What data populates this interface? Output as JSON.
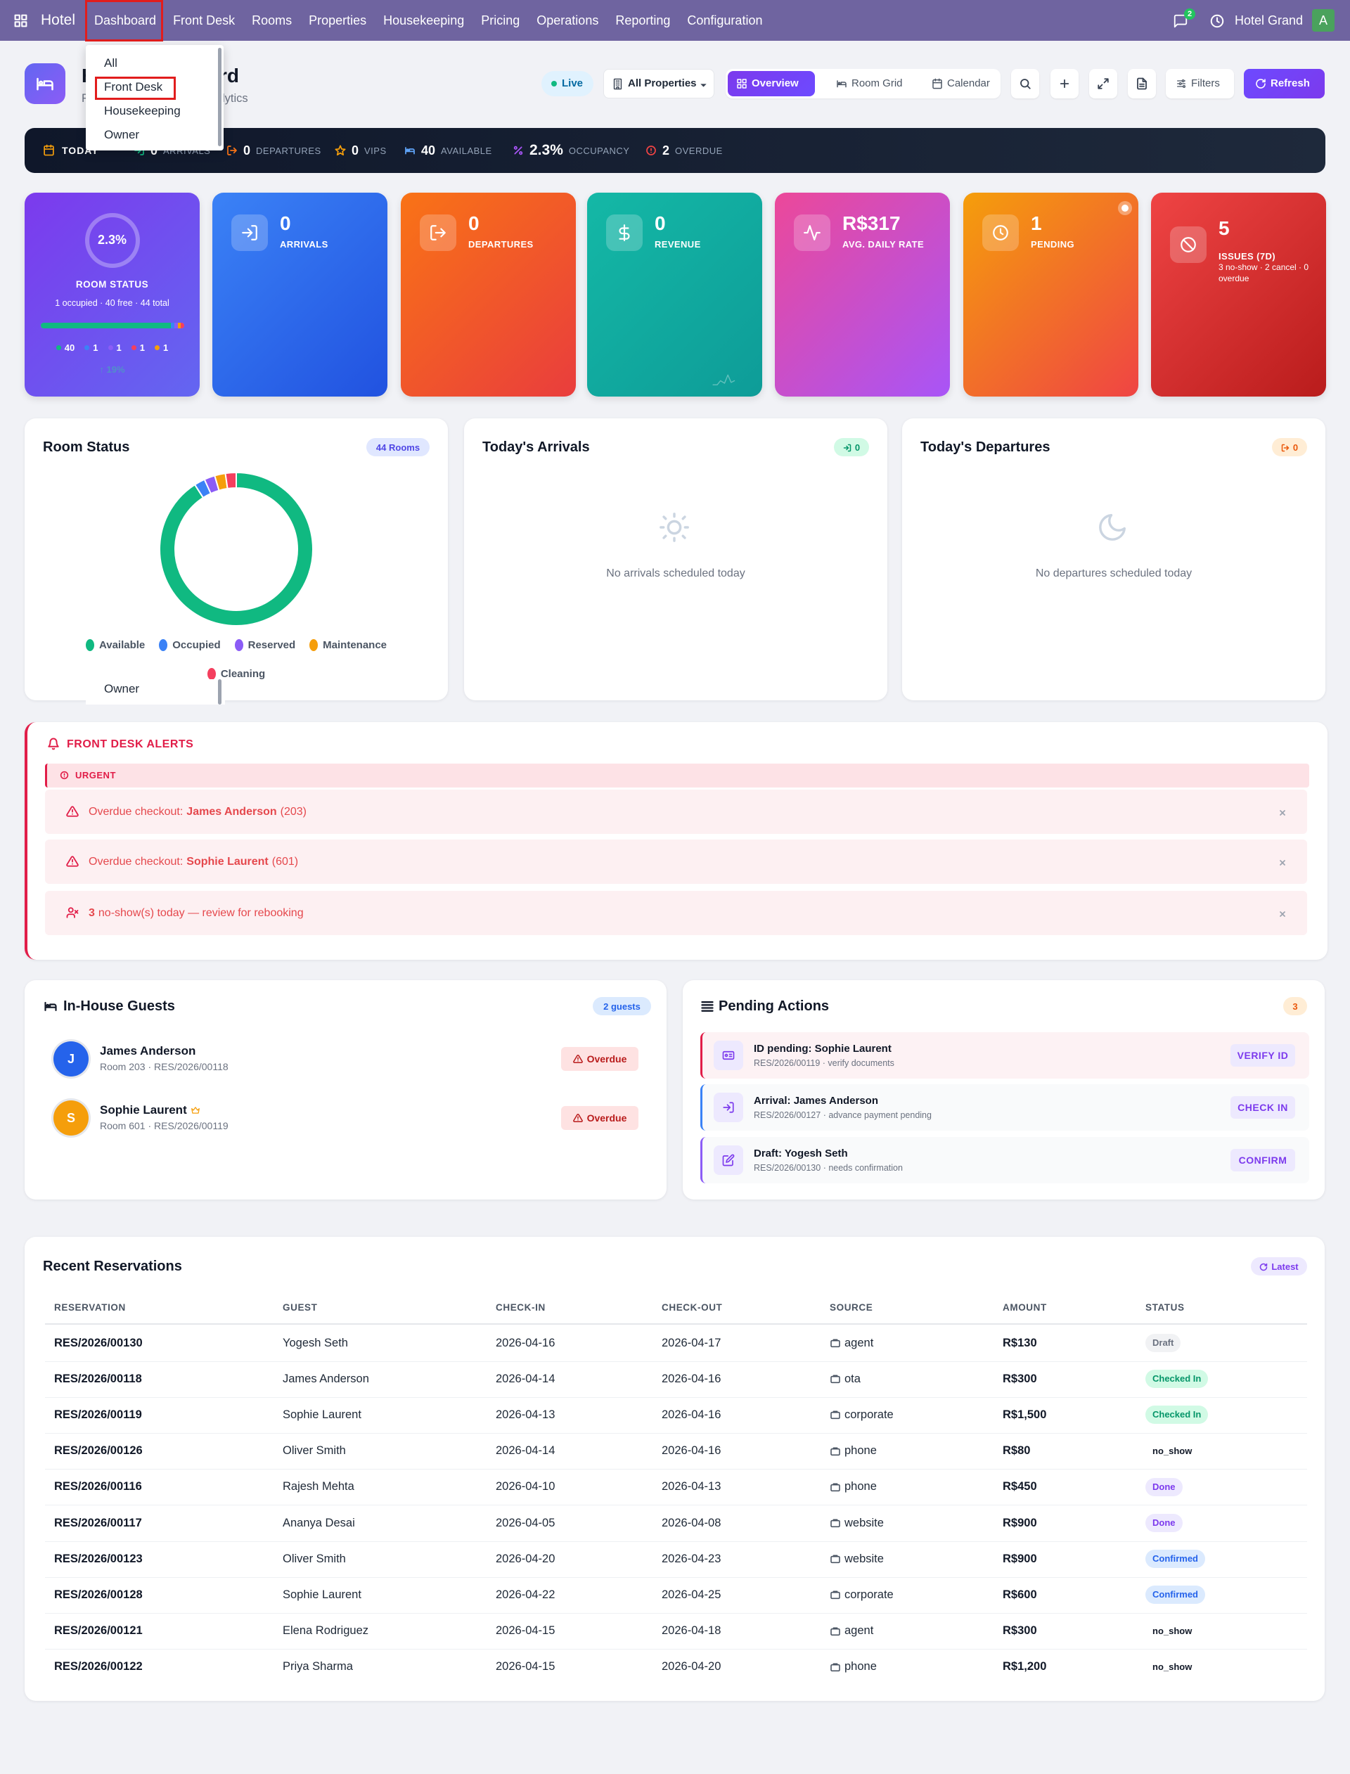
{
  "nav": {
    "brand": "Hotel",
    "items": [
      "Dashboard",
      "Front Desk",
      "Rooms",
      "Properties",
      "Housekeeping",
      "Pricing",
      "Operations",
      "Reporting",
      "Configuration"
    ],
    "messages": "2",
    "company": "Hotel Grand",
    "avatar": "A"
  },
  "menu": {
    "items": [
      "All",
      "Front Desk",
      "Housekeeping",
      "Owner"
    ],
    "ghost": "Owner"
  },
  "header": {
    "title": "Hotel Dashboard",
    "subtitle": "Real-time operations & analytics"
  },
  "toolbar": {
    "live": "Live",
    "property": "All Properties",
    "views": [
      "Overview",
      "Room Grid",
      "Calendar"
    ],
    "filters": "Filters",
    "refresh": "Refresh"
  },
  "today": {
    "label": "TODAY",
    "stats": [
      {
        "value": "0",
        "label": "ARRIVALS"
      },
      {
        "value": "0",
        "label": "DEPARTURES"
      },
      {
        "value": "0",
        "label": "VIPS"
      },
      {
        "value": "40",
        "label": "AVAILABLE"
      },
      {
        "value": "2.3%",
        "label": "OCCUPANCY"
      },
      {
        "value": "2",
        "label": "OVERDUE"
      }
    ]
  },
  "kpis": {
    "room_status": {
      "value": "2.3%",
      "label": "ROOM STATUS",
      "detail": "1 occupied · 40 free · 44 total",
      "trend": "↑ 19%"
    },
    "cards": [
      {
        "value": "0",
        "label": "ARRIVALS"
      },
      {
        "value": "0",
        "label": "DEPARTURES"
      },
      {
        "value": "0",
        "label": "REVENUE"
      },
      {
        "value": "R$317",
        "label": "AVG. DAILY RATE"
      },
      {
        "value": "1",
        "label": "PENDING"
      },
      {
        "value": "5",
        "label": "ISSUES (7D)",
        "note": "3 no-show · 2 cancel · 0 overdue"
      }
    ]
  },
  "chart_data": {
    "type": "donut",
    "title": "Room Status",
    "badge": "44 Rooms",
    "categories": [
      "Available",
      "Occupied",
      "Reserved",
      "Maintenance",
      "Cleaning"
    ],
    "values": [
      40,
      1,
      1,
      1,
      1
    ],
    "colors": [
      "#10b981",
      "#3b82f6",
      "#8b5cf6",
      "#f59e0b",
      "#f43f5e"
    ]
  },
  "arrivals": {
    "title": "Today's Arrivals",
    "badge": "0",
    "empty": "No arrivals scheduled today"
  },
  "departures": {
    "title": "Today's Departures",
    "badge": "0",
    "empty": "No departures scheduled today"
  },
  "alerts": {
    "title": "FRONT DESK ALERTS",
    "group": "URGENT",
    "items": [
      {
        "text": "Overdue checkout:",
        "strong": "James Anderson",
        "suffix": "(203)"
      },
      {
        "text": "Overdue checkout:",
        "strong": "Sophie Laurent",
        "suffix": "(601)"
      },
      {
        "strong": "3",
        "suffix": "no-show(s) today — review for rebooking"
      }
    ]
  },
  "guests": {
    "title": "In-House Guests",
    "badge": "2 guests",
    "items": [
      {
        "initial": "J",
        "name": "James Anderson",
        "detail": "Room 203 · RES/2026/00118",
        "status": "Overdue"
      },
      {
        "initial": "S",
        "name": "Sophie Laurent",
        "detail": "Room 601 · RES/2026/00119",
        "status": "Overdue"
      }
    ]
  },
  "pending": {
    "title": "Pending Actions",
    "badge": "3",
    "items": [
      {
        "title": "ID pending: Sophie Laurent",
        "detail": "RES/2026/00119 · verify documents",
        "action": "VERIFY ID"
      },
      {
        "title": "Arrival: James Anderson",
        "detail": "RES/2026/00127 · advance payment pending",
        "action": "CHECK IN"
      },
      {
        "title": "Draft: Yogesh Seth",
        "detail": "RES/2026/00130 · needs confirmation",
        "action": "CONFIRM"
      }
    ]
  },
  "reservations": {
    "title": "Recent Reservations",
    "badge": "Latest",
    "columns": [
      "RESERVATION",
      "GUEST",
      "CHECK-IN",
      "CHECK-OUT",
      "SOURCE",
      "AMOUNT",
      "STATUS"
    ],
    "rows": [
      [
        "RES/2026/00130",
        "Yogesh Seth",
        "2026-04-16",
        "2026-04-17",
        "agent",
        "R$130",
        "Draft"
      ],
      [
        "RES/2026/00118",
        "James Anderson",
        "2026-04-14",
        "2026-04-16",
        "ota",
        "R$300",
        "Checked In"
      ],
      [
        "RES/2026/00119",
        "Sophie Laurent",
        "2026-04-13",
        "2026-04-16",
        "corporate",
        "R$1,500",
        "Checked In"
      ],
      [
        "RES/2026/00126",
        "Oliver Smith",
        "2026-04-14",
        "2026-04-16",
        "phone",
        "R$80",
        "no_show"
      ],
      [
        "RES/2026/00116",
        "Rajesh Mehta",
        "2026-04-10",
        "2026-04-13",
        "phone",
        "R$450",
        "Done"
      ],
      [
        "RES/2026/00117",
        "Ananya Desai",
        "2026-04-05",
        "2026-04-08",
        "website",
        "R$900",
        "Done"
      ],
      [
        "RES/2026/00123",
        "Oliver Smith",
        "2026-04-20",
        "2026-04-23",
        "website",
        "R$900",
        "Confirmed"
      ],
      [
        "RES/2026/00128",
        "Sophie Laurent",
        "2026-04-22",
        "2026-04-25",
        "corporate",
        "R$600",
        "Confirmed"
      ],
      [
        "RES/2026/00121",
        "Elena Rodriguez",
        "2026-04-15",
        "2026-04-18",
        "agent",
        "R$300",
        "no_show"
      ],
      [
        "RES/2026/00122",
        "Priya Sharma",
        "2026-04-15",
        "2026-04-20",
        "phone",
        "R$1,200",
        "no_show"
      ]
    ],
    "status_styles": [
      {
        "color": "#6b7280",
        "background": "#f1f2f4"
      },
      {
        "color": "#059669",
        "background": "#d1fae5"
      },
      {
        "color": "#059669",
        "background": "#d1fae5"
      },
      {
        "color": "#111827",
        "background": "#ffffff"
      },
      {
        "color": "#7c3aed",
        "background": "#ede9fe"
      },
      {
        "color": "#7c3aed",
        "background": "#ede9fe"
      },
      {
        "color": "#2563eb",
        "background": "#dbeafe"
      },
      {
        "color": "#2563eb",
        "background": "#dbeafe"
      },
      {
        "color": "#111827",
        "background": "#ffffff"
      },
      {
        "color": "#111827",
        "background": "#ffffff"
      }
    ]
  }
}
